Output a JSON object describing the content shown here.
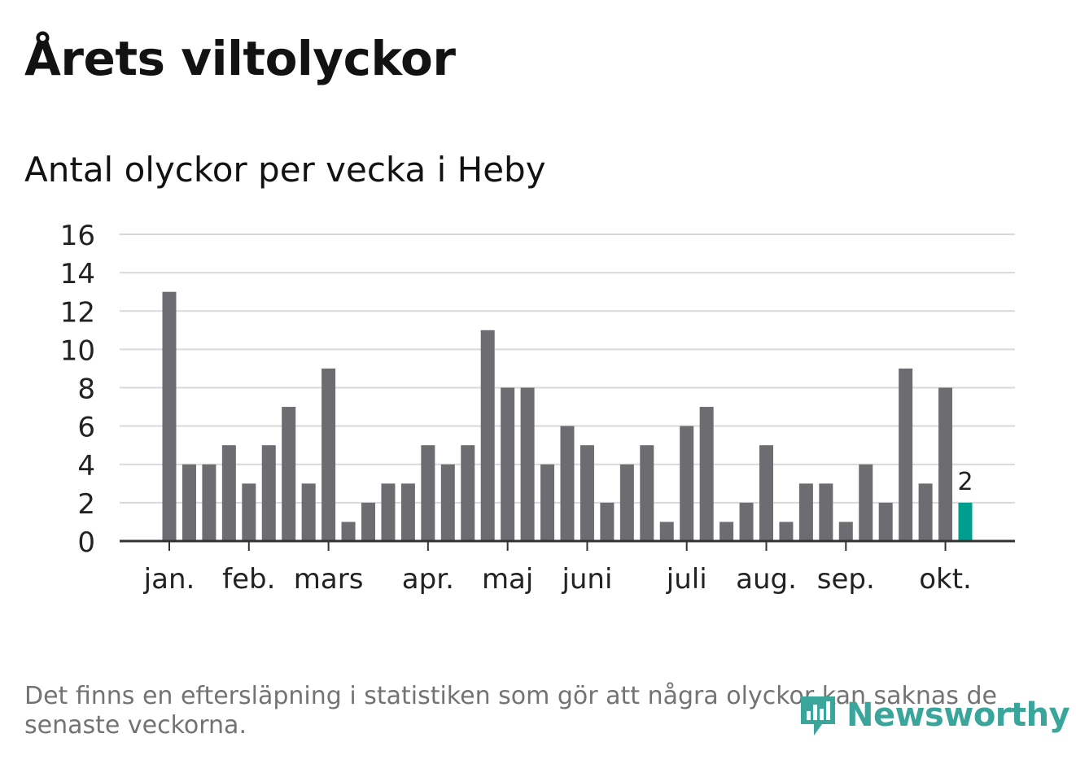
{
  "header": {
    "title": "Årets viltolyckor",
    "subtitle": "Antal olyckor per vecka i Heby"
  },
  "footer": {
    "note": "Det finns en eftersläpning i statistiken som gör att några olyckor kan saknas de senaste veckorna.",
    "brand": "Newsworthy",
    "brand_icon": "newsworthy-logo-icon"
  },
  "colors": {
    "bar": "#6d6c71",
    "highlight": "#009e8f",
    "grid": "#d9d9d9",
    "axis": "#333333",
    "text": "#222222",
    "brand": "#3aa59b"
  },
  "chart_data": {
    "type": "bar",
    "y_ticks": [
      0,
      2,
      4,
      6,
      8,
      10,
      12,
      14,
      16
    ],
    "ylim": [
      0,
      16
    ],
    "grid": true,
    "x_month_labels": [
      {
        "label": "jan.",
        "week": 1
      },
      {
        "label": "feb.",
        "week": 5
      },
      {
        "label": "mars",
        "week": 9
      },
      {
        "label": "apr.",
        "week": 14
      },
      {
        "label": "maj",
        "week": 18
      },
      {
        "label": "juni",
        "week": 22
      },
      {
        "label": "juli",
        "week": 27
      },
      {
        "label": "aug.",
        "week": 31
      },
      {
        "label": "sep.",
        "week": 35
      },
      {
        "label": "okt.",
        "week": 40
      }
    ],
    "weeks": [
      1,
      2,
      3,
      4,
      5,
      6,
      7,
      8,
      9,
      10,
      11,
      12,
      13,
      14,
      15,
      16,
      17,
      18,
      19,
      20,
      21,
      22,
      23,
      24,
      25,
      26,
      27,
      28,
      29,
      30,
      31,
      32,
      33,
      34,
      35,
      36,
      37,
      38,
      39,
      40,
      41
    ],
    "values": [
      13,
      4,
      4,
      5,
      3,
      5,
      7,
      3,
      9,
      1,
      2,
      3,
      3,
      5,
      4,
      5,
      11,
      8,
      8,
      4,
      6,
      5,
      2,
      4,
      5,
      1,
      6,
      7,
      1,
      2,
      5,
      1,
      3,
      3,
      1,
      4,
      2,
      9,
      3,
      8,
      2
    ],
    "highlight_last": true,
    "highlight_label": "2"
  }
}
